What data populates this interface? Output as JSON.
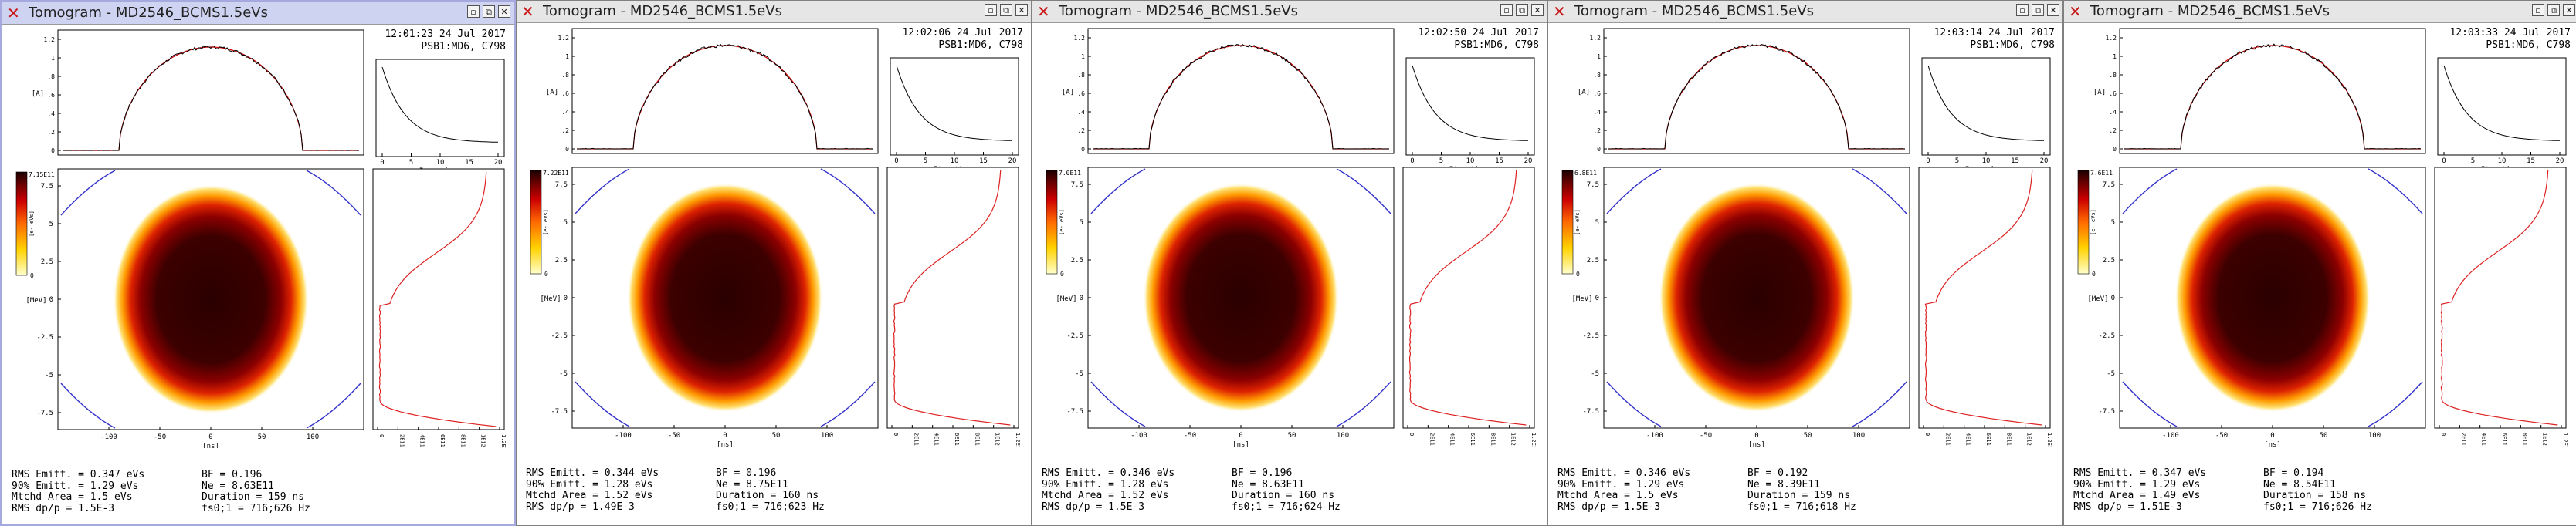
{
  "windows": [
    {
      "title": "Tomogram - MD2546_BCMS1.5eVs",
      "active": true,
      "timestamp": "12:01:23 24 Jul 2017",
      "beam": "PSB1:MD6, C798",
      "colorbar_max": "7.15E11",
      "stats": {
        "rms_emitt": "RMS Emitt. = 0.347 eVs",
        "emitt_90": "90% Emitt. = 1.29 eVs",
        "mtchd_area": "Mtchd Area = 1.5 eVs",
        "rms_dpp": "RMS dp/p = 1.5E-3",
        "bf": "BF = 0.196",
        "ne": "Ne = 8.63E11",
        "duration": "Duration = 159 ns",
        "fs": "fs0;1 = 716;626 Hz"
      }
    },
    {
      "title": "Tomogram - MD2546_BCMS1.5eVs",
      "active": false,
      "timestamp": "12:02:06 24 Jul 2017",
      "beam": "PSB1:MD6, C798",
      "colorbar_max": "7.22E11",
      "stats": {
        "rms_emitt": "RMS Emitt. = 0.344 eVs",
        "emitt_90": "90% Emitt. = 1.28 eVs",
        "mtchd_area": "Mtchd Area = 1.52 eVs",
        "rms_dpp": "RMS dp/p = 1.49E-3",
        "bf": "BF = 0.196",
        "ne": "Ne = 8.75E11",
        "duration": "Duration = 160 ns",
        "fs": "fs0;1 = 716;623 Hz"
      }
    },
    {
      "title": "Tomogram - MD2546_BCMS1.5eVs",
      "active": false,
      "timestamp": "12:02:50 24 Jul 2017",
      "beam": "PSB1:MD6, C798",
      "colorbar_max": "7.0E11",
      "stats": {
        "rms_emitt": "RMS Emitt. = 0.346 eVs",
        "emitt_90": "90% Emitt. = 1.28 eVs",
        "mtchd_area": "Mtchd Area = 1.52 eVs",
        "rms_dpp": "RMS dp/p = 1.5E-3",
        "bf": "BF = 0.196",
        "ne": "Ne = 8.63E11",
        "duration": "Duration = 160 ns",
        "fs": "fs0;1 = 716;624 Hz"
      }
    },
    {
      "title": "Tomogram - MD2546_BCMS1.5eVs",
      "active": false,
      "timestamp": "12:03:14 24 Jul 2017",
      "beam": "PSB1:MD6, C798",
      "colorbar_max": "6.8E11",
      "stats": {
        "rms_emitt": "RMS Emitt. = 0.346 eVs",
        "emitt_90": "90% Emitt. = 1.29 eVs",
        "mtchd_area": "Mtchd Area = 1.5 eVs",
        "rms_dpp": "RMS dp/p = 1.5E-3",
        "bf": "BF = 0.192",
        "ne": "Ne = 8.39E11",
        "duration": "Duration = 159 ns",
        "fs": "fs0;1 = 716;618 Hz"
      }
    },
    {
      "title": "Tomogram - MD2546_BCMS1.5eVs",
      "active": false,
      "timestamp": "12:03:33 24 Jul 2017",
      "beam": "PSB1:MD6, C798",
      "colorbar_max": "7.6E11",
      "stats": {
        "rms_emitt": "RMS Emitt. = 0.347 eVs",
        "emitt_90": "90% Emitt. = 1.29 eVs",
        "mtchd_area": "Mtchd Area = 1.49 eVs",
        "rms_dpp": "RMS dp/p = 1.51E-3",
        "bf": "BF = 0.194",
        "ne": "Ne = 8.54E11",
        "duration": "Duration = 158 ns",
        "fs": "fs0;1 = 716;626 Hz"
      }
    }
  ],
  "titlebar_buttons": [
    "minimize-icon",
    "restore-icon",
    "close-icon"
  ],
  "profile_plot": {
    "y_ticks": [
      "0",
      ".1",
      ".2",
      ".3",
      ".4",
      ".5",
      ".6",
      ".7",
      ".8",
      ".9",
      "1",
      "1.1",
      "1.2"
    ],
    "y_unit": "[A]"
  },
  "convergence_plot": {
    "x_ticks": [
      "0",
      "5",
      "10",
      "15",
      "20"
    ],
    "xlabel": "Iterations"
  },
  "phase_space_plot": {
    "x_ticks": [
      "-100",
      "-50",
      "0",
      "50",
      "100"
    ],
    "xlabel": "[ns]",
    "y_ticks": [
      "7.5",
      "5",
      "2.5",
      "0",
      "-2.5",
      "-5",
      "-7.5"
    ],
    "ylabel": "[MeV]"
  },
  "side_profile_plot": {
    "x_ticks": [
      "0",
      "2E11",
      "4E11",
      "6E11",
      "8E11",
      "1E12",
      "1.2E12"
    ],
    "unit": "[e- eVs]"
  },
  "colorbar": {
    "min": "0",
    "unit": "[e- eVs]"
  },
  "colors": {
    "profile_line": "#000000",
    "profile_fit": "#cc0000",
    "separatrix": "#3333cc",
    "side_profile": "#dd2222",
    "active_border": "#a5a9dd"
  }
}
